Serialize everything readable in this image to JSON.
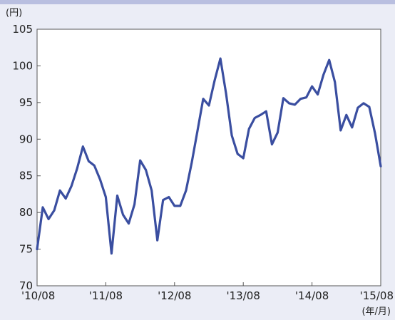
{
  "chart_data": {
    "type": "line",
    "y_unit": "(円)",
    "x_unit": "(年/月)",
    "ylim": [
      70,
      105
    ],
    "yticks": [
      70,
      75,
      80,
      85,
      90,
      95,
      100,
      105
    ],
    "xtick_labels": [
      "'10/08",
      "'11/08",
      "'12/08",
      "'13/08",
      "'14/08",
      "'15/08"
    ],
    "grid": false,
    "line_color": "#3a4ea0",
    "series": [
      {
        "values": [
          75.0,
          80.7,
          79.1,
          80.3,
          83.0,
          81.9,
          83.6,
          86.0,
          89.0,
          87.0,
          86.4,
          84.5,
          82.1,
          74.4,
          82.3,
          79.7,
          78.5,
          81.1,
          87.1,
          85.8,
          83.0,
          76.2,
          81.7,
          82.1,
          80.9,
          80.9,
          83.0,
          86.8,
          91.1,
          95.5,
          94.6,
          98.0,
          101.0,
          96.2,
          90.5,
          88.0,
          87.4,
          91.4,
          92.9,
          93.3,
          93.8,
          89.3,
          90.9,
          95.6,
          94.9,
          94.7,
          95.5,
          95.7,
          97.2,
          96.1,
          98.8,
          100.8,
          97.8,
          91.2,
          93.3,
          91.6,
          94.3,
          94.9,
          94.4,
          90.8,
          86.3
        ]
      }
    ]
  }
}
